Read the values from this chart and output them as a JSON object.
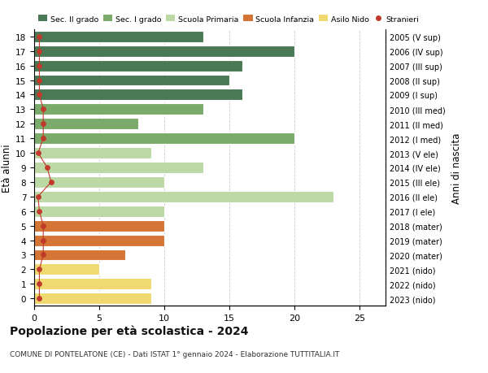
{
  "ages": [
    18,
    17,
    16,
    15,
    14,
    13,
    12,
    11,
    10,
    9,
    8,
    7,
    6,
    5,
    4,
    3,
    2,
    1,
    0
  ],
  "right_labels": [
    "2005 (V sup)",
    "2006 (IV sup)",
    "2007 (III sup)",
    "2008 (II sup)",
    "2009 (I sup)",
    "2010 (III med)",
    "2011 (II med)",
    "2012 (I med)",
    "2013 (V ele)",
    "2014 (IV ele)",
    "2015 (III ele)",
    "2016 (II ele)",
    "2017 (I ele)",
    "2018 (mater)",
    "2019 (mater)",
    "2020 (mater)",
    "2021 (nido)",
    "2022 (nido)",
    "2023 (nido)"
  ],
  "bar_values": [
    13,
    20,
    16,
    15,
    16,
    13,
    8,
    20,
    9,
    13,
    10,
    23,
    10,
    10,
    10,
    7,
    5,
    9,
    9
  ],
  "bar_colors": [
    "#4a7a55",
    "#4a7a55",
    "#4a7a55",
    "#4a7a55",
    "#4a7a55",
    "#7aab6a",
    "#7aab6a",
    "#7aab6a",
    "#bcd9a5",
    "#bcd9a5",
    "#bcd9a5",
    "#bcd9a5",
    "#bcd9a5",
    "#d47535",
    "#d47535",
    "#d47535",
    "#f0d970",
    "#f0d970",
    "#f0d970"
  ],
  "stranieri_x": [
    0.4,
    0.4,
    0.4,
    0.4,
    0.4,
    0.7,
    0.7,
    0.7,
    0.3,
    1.0,
    1.3,
    0.3,
    0.4,
    0.7,
    0.7,
    0.7,
    0.4,
    0.4,
    0.4
  ],
  "legend_labels": [
    "Sec. II grado",
    "Sec. I grado",
    "Scuola Primaria",
    "Scuola Infanzia",
    "Asilo Nido",
    "Stranieri"
  ],
  "legend_colors": [
    "#4a7a55",
    "#7aab6a",
    "#bcd9a5",
    "#d47535",
    "#f0d970",
    "#c0392b"
  ],
  "ylabel_left": "Età alunni",
  "ylabel_right": "Anni di nascita",
  "title": "Popolazione per età scolastica - 2024",
  "subtitle": "COMUNE DI PONTELATONE (CE) - Dati ISTAT 1° gennaio 2024 - Elaborazione TUTTITALIA.IT",
  "xlim": [
    0,
    27
  ],
  "ylim": [
    -0.5,
    18.5
  ],
  "background_color": "#ffffff",
  "grid_color": "#cccccc",
  "stranieri_color": "#c0392b",
  "bar_edge_color": "#ffffff"
}
